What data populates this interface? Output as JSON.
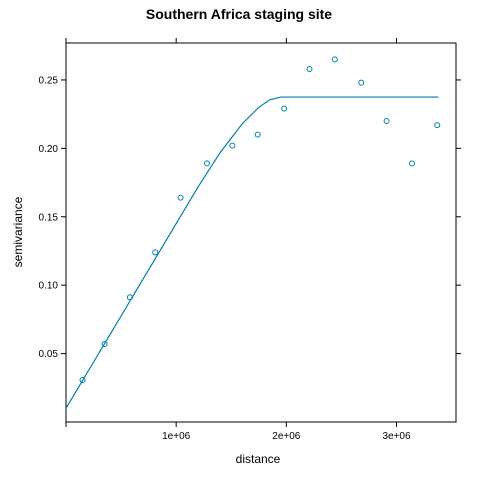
{
  "chart_data": {
    "type": "scatter",
    "title": "Southern Africa staging site",
    "xlabel": "distance",
    "ylabel": "semivariance",
    "xlim": [
      0,
      3540000
    ],
    "ylim": [
      0.0,
      0.277
    ],
    "x_ticks": [
      {
        "value": 0,
        "label": ""
      },
      {
        "value": 1000000,
        "label": "1e+06"
      },
      {
        "value": 2000000,
        "label": "2e+06"
      },
      {
        "value": 3000000,
        "label": "3e+06"
      }
    ],
    "y_ticks": [
      {
        "value": 0.05,
        "label": "0.05"
      },
      {
        "value": 0.1,
        "label": "0.10"
      },
      {
        "value": 0.15,
        "label": "0.15"
      },
      {
        "value": 0.2,
        "label": "0.20"
      },
      {
        "value": 0.25,
        "label": "0.25"
      }
    ],
    "grid": false,
    "colors": {
      "points": "#0080a8",
      "model": "#0080a8",
      "frame": "#000000"
    },
    "series": [
      {
        "kind": "points",
        "x": [
          150000,
          350000,
          580000,
          810000,
          1040000,
          1280000,
          1510000,
          1740000,
          1980000,
          2210000,
          2440000,
          2680000,
          2910000,
          3140000,
          3370000
        ],
        "y": [
          0.0307,
          0.057,
          0.0912,
          0.124,
          0.164,
          0.189,
          0.202,
          0.21,
          0.229,
          0.258,
          0.265,
          0.248,
          0.22,
          0.189,
          0.217
        ]
      },
      {
        "kind": "model-line",
        "x": [
          0,
          200000,
          400000,
          600000,
          800000,
          1000000,
          1200000,
          1400000,
          1600000,
          1750000,
          1850000,
          1950000,
          2050000,
          3380000
        ],
        "y": [
          0.01,
          0.037,
          0.064,
          0.091,
          0.118,
          0.145,
          0.172,
          0.197,
          0.218,
          0.23,
          0.2355,
          0.2375,
          0.2375,
          0.2375
        ]
      }
    ]
  }
}
